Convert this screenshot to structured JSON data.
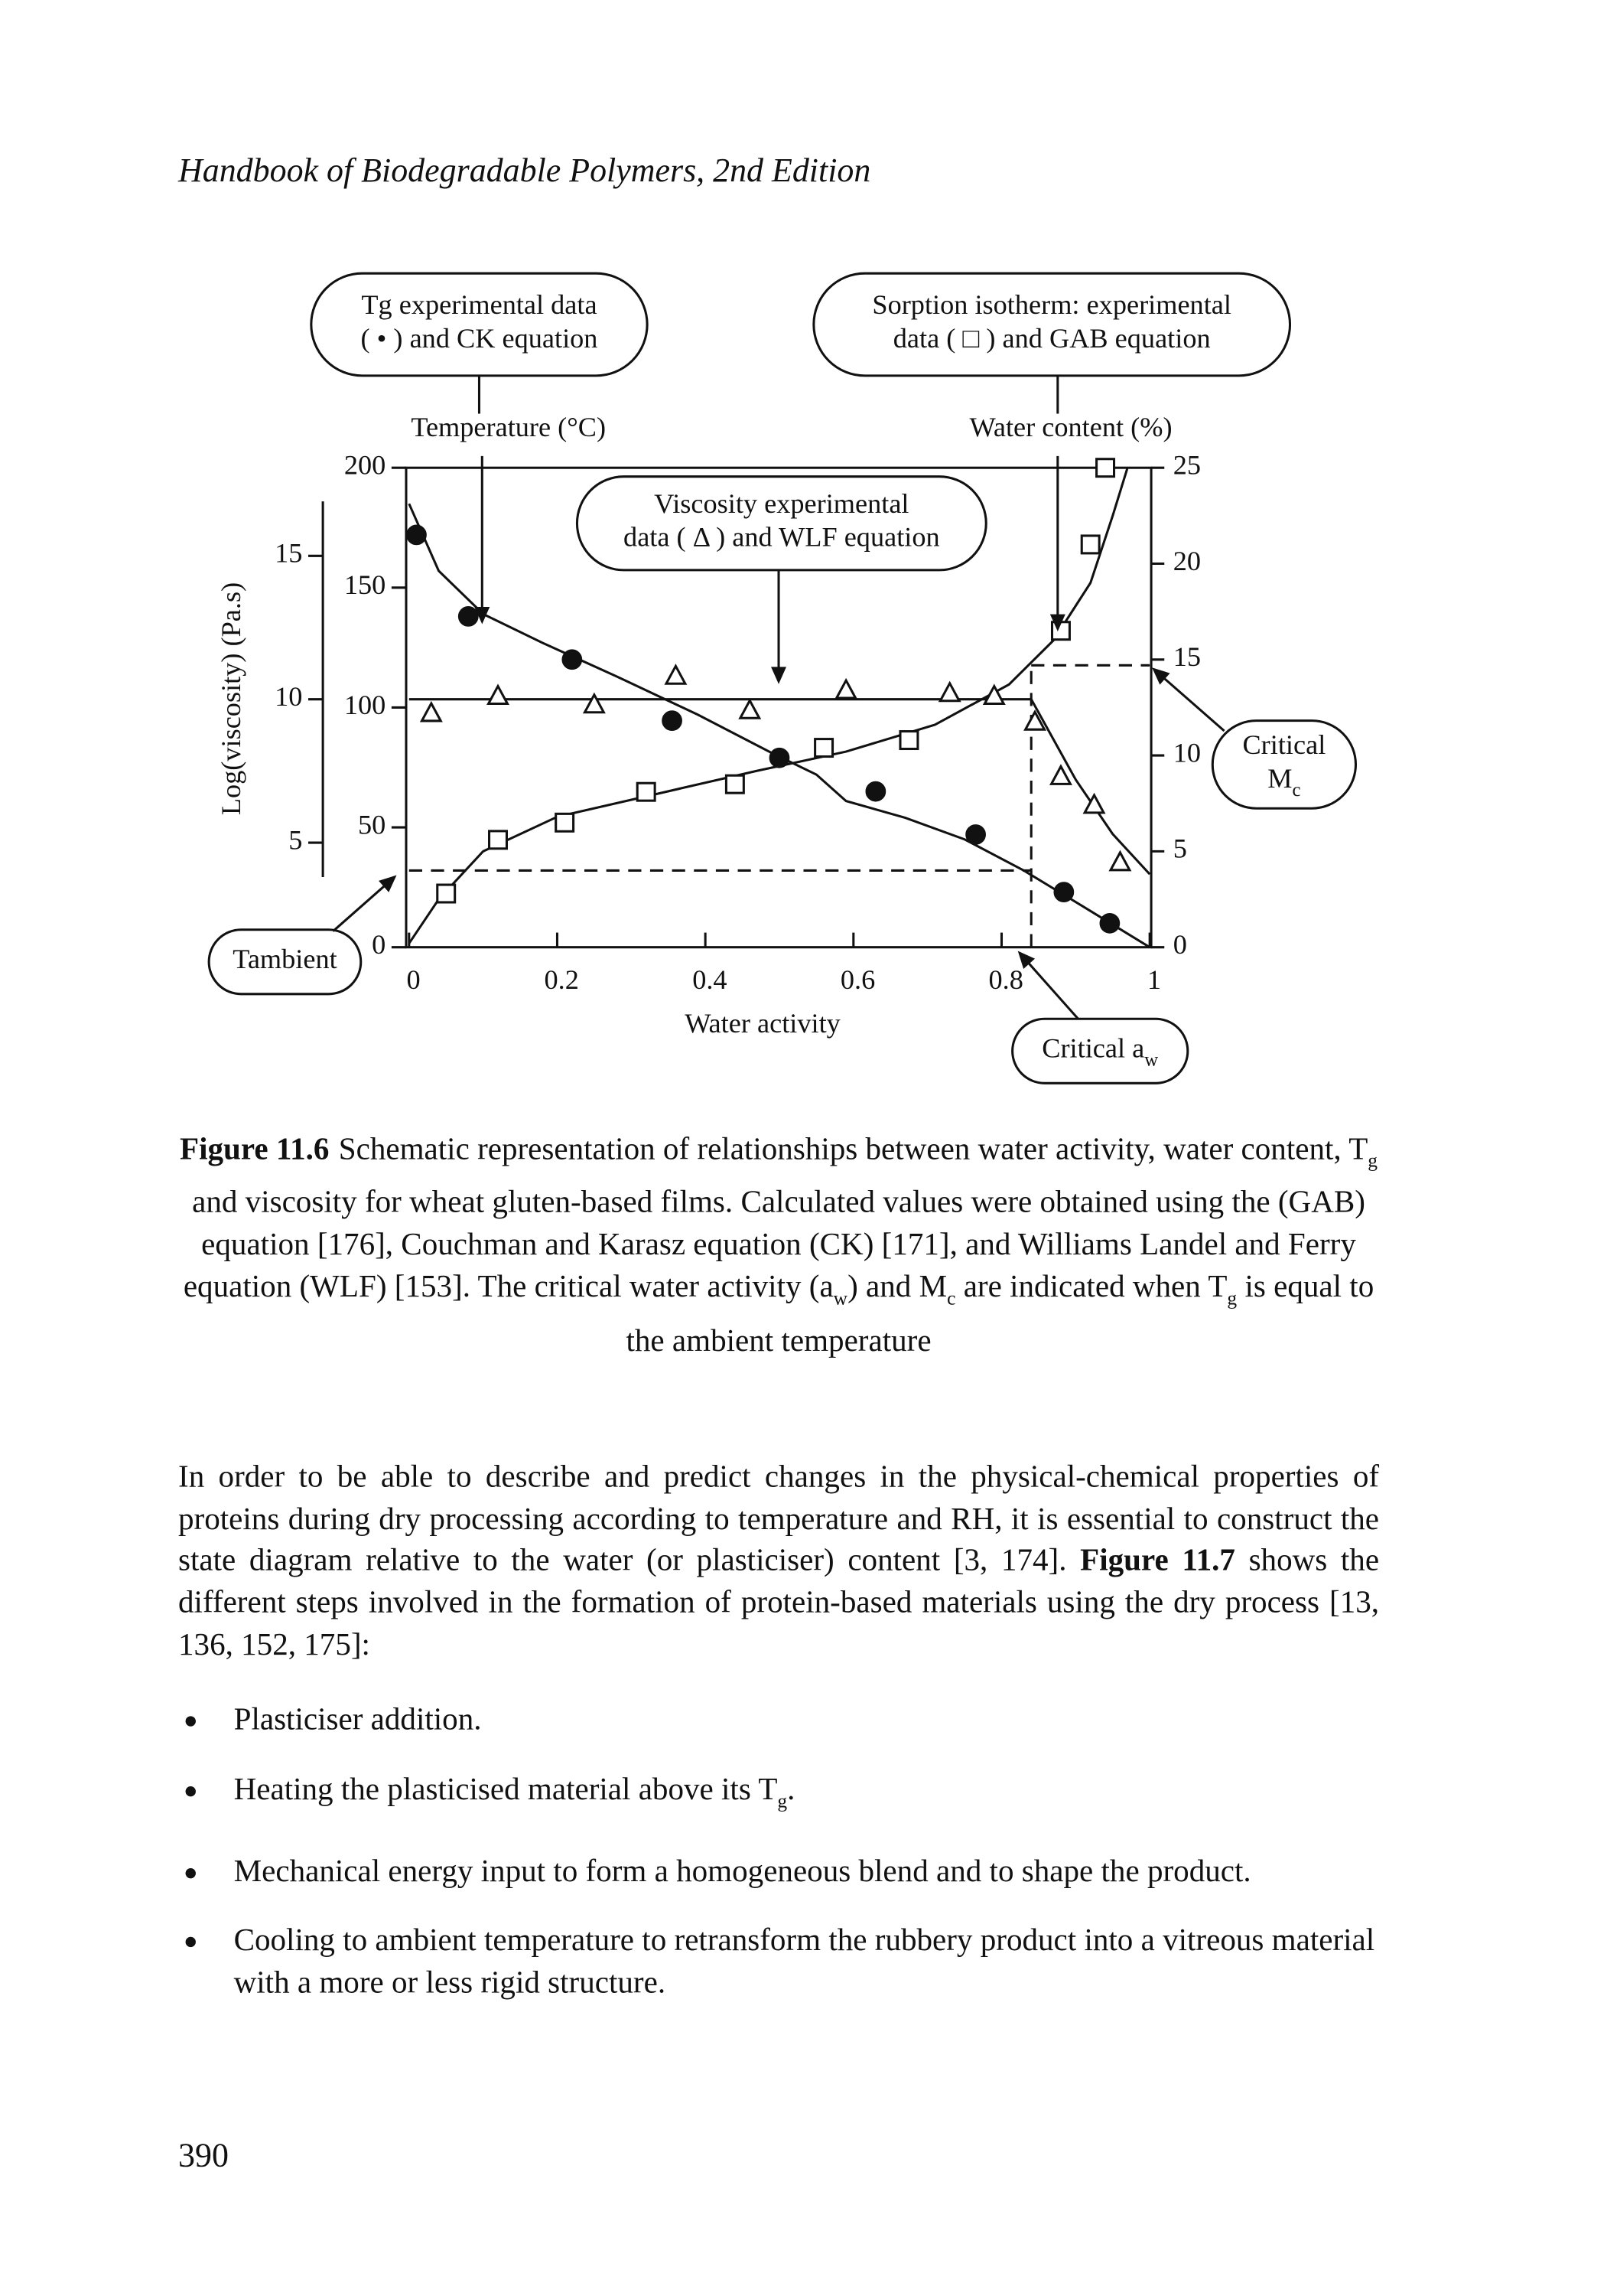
{
  "header": {
    "title": "Handbook of Biodegradable Polymers, 2nd Edition"
  },
  "chart_data": {
    "type": "scatter",
    "xlabel": "Water activity",
    "xlim": [
      0,
      1
    ],
    "xticks": [
      0,
      0.2,
      0.4,
      0.6,
      0.8,
      1
    ],
    "ylabel": "Temperature (°C)",
    "ylim": [
      0,
      200
    ],
    "yticks": [
      0,
      50,
      100,
      150,
      200
    ],
    "y2label": "Water content (%)",
    "y2lim": [
      0,
      25
    ],
    "y2ticks": [
      0,
      5,
      10,
      15,
      20,
      25
    ],
    "y3label": "Log(viscosity) (Pa.s)",
    "y3lim": [
      3.8,
      16.9
    ],
    "y3ticks": [
      5,
      10,
      15
    ],
    "series": [
      {
        "axis": "y",
        "marker": "circle",
        "color": "#111111",
        "callout": [
          [
            "Tg experimental data"
          ],
          [
            "( • ) and CK equation"
          ]
        ],
        "x": [
          0.01,
          0.08,
          0.22,
          0.355,
          0.5,
          0.63,
          0.765,
          0.884,
          0.946
        ],
        "values": [
          172,
          138,
          120,
          94.5,
          79,
          65,
          47,
          23,
          10
        ],
        "fit_x": [
          0,
          0.04,
          0.1,
          0.18,
          0.28,
          0.39,
          0.49,
          0.55,
          0.59,
          0.67,
          0.75,
          0.83,
          0.91,
          1
        ],
        "fit_values": [
          185,
          157,
          139,
          127,
          113,
          97,
          81,
          72,
          61,
          54,
          45,
          32,
          17,
          0
        ]
      },
      {
        "axis": "y2",
        "marker": "square",
        "color": "#111111",
        "callout": [
          [
            "Sorption isotherm: experimental"
          ],
          [
            "data ( □ ) and GAB equation"
          ]
        ],
        "x": [
          0.05,
          0.12,
          0.21,
          0.32,
          0.44,
          0.56,
          0.675,
          0.88,
          0.92,
          0.94
        ],
        "values": [
          2.8,
          5.6,
          6.5,
          8.1,
          8.5,
          10.4,
          10.8,
          16.5,
          21,
          25
        ],
        "fit_x": [
          0,
          0.04,
          0.1,
          0.2,
          0.335,
          0.47,
          0.59,
          0.71,
          0.81,
          0.87,
          0.92,
          0.95,
          0.97
        ],
        "fit_values": [
          0.2,
          2.5,
          5,
          6.8,
          8,
          9.2,
          10.2,
          11.6,
          13.7,
          16,
          19,
          22.5,
          25
        ]
      },
      {
        "axis": "y3",
        "marker": "triangle",
        "color": "#111111",
        "callout": [
          [
            "Viscosity experimental"
          ],
          [
            "data ( Δ ) and WLF equation"
          ]
        ],
        "x": [
          0.03,
          0.12,
          0.25,
          0.36,
          0.46,
          0.59,
          0.73,
          0.79,
          0.845,
          0.88,
          0.925,
          0.96
        ],
        "values": [
          9.5,
          10.1,
          9.8,
          10.8,
          9.6,
          10.3,
          10.2,
          10.1,
          9.2,
          7.3,
          6.3,
          4.3
        ],
        "fit_x": [
          0,
          0.84,
          0.9,
          0.95,
          1
        ],
        "fit_values": [
          10,
          10,
          7.2,
          5.3,
          3.9
        ]
      }
    ],
    "t_ambient": 32,
    "t_ambient_label": [
      [
        "Tambient"
      ]
    ],
    "critical_aw": 0.84,
    "critical_aw_label": [
      [
        "Critical a",
        "w"
      ]
    ],
    "critical_mc": 14.7,
    "critical_mc_label": [
      [
        "Critical"
      ],
      [
        "M",
        "c"
      ]
    ]
  },
  "caption": {
    "label": "Figure 11.6",
    "runs": [
      "Schematic representation of relationships between water activity, water content, T",
      "g",
      " and viscosity for wheat gluten-based films. Calculated values were obtained using the (GAB) equation [176], Couchman and Karasz equation (CK) [171], and Williams Landel and Ferry equation (WLF) [153]. The critical water activity (a",
      "w",
      ") and M",
      "c",
      " are indicated when T",
      "g",
      " is equal to the ambient temperature"
    ]
  },
  "body": {
    "paragraph": [
      "In order to be able to describe and predict changes in the physical-chemical properties of proteins during dry processing according to temperature and RH, it is essential to construct the state diagram relative to the water (or plasticiser) content [3, 174]. ",
      "Figure 11.7",
      " shows the different steps involved in the formation of protein-based materials using the dry process [13, 136, 152, 175]:"
    ],
    "bullets": [
      [
        "Plasticiser addition."
      ],
      [
        "Heating the plasticised material above its T",
        "g",
        "."
      ],
      [
        "Mechanical energy input to form a homogeneous blend and to shape the product."
      ],
      [
        "Cooling to ambient temperature to retransform the rubbery product into a vitreous material with a more or less rigid structure."
      ]
    ]
  },
  "page_number": "390"
}
